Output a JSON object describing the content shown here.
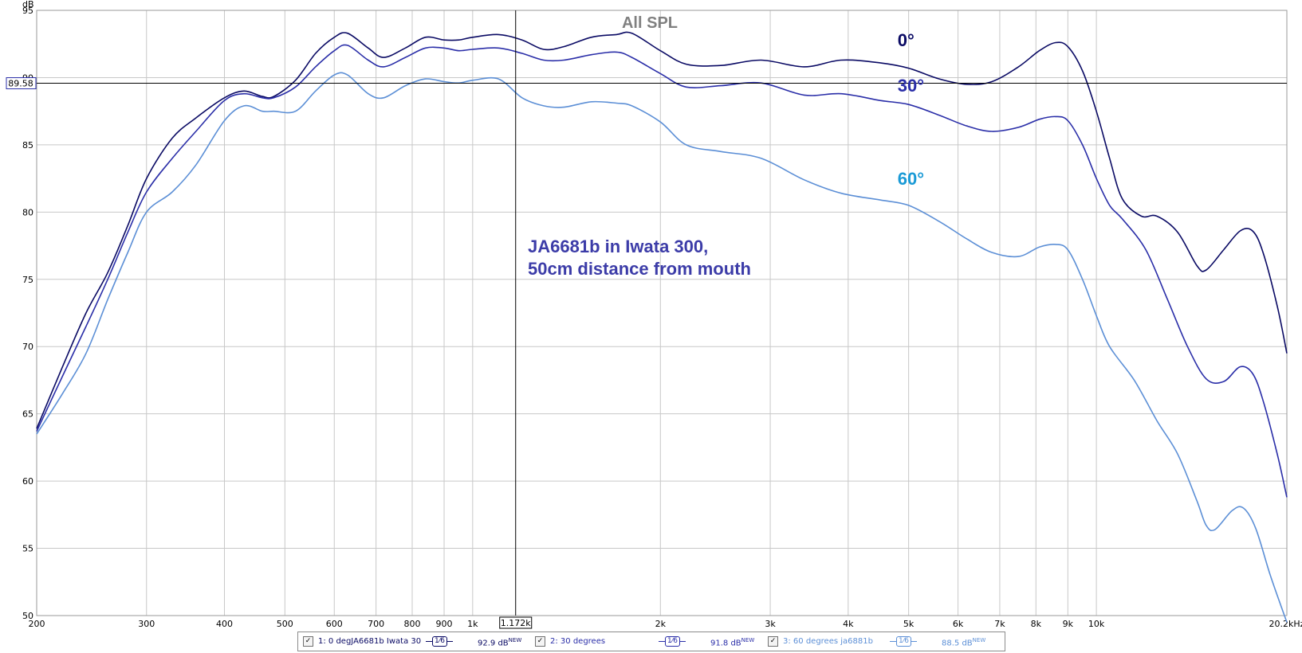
{
  "chart_data": {
    "type": "line",
    "title": "All SPL",
    "ylabel": "dB",
    "xscale": "log",
    "xlim": [
      200,
      20200
    ],
    "ylim": [
      50,
      95
    ],
    "grid": true,
    "x_tick_labels": [
      "200",
      "300",
      "400",
      "500",
      "600",
      "700",
      "800",
      "900",
      "1k",
      "2k",
      "3k",
      "4k",
      "5k",
      "6k",
      "7k",
      "8k",
      "9k",
      "10k",
      "20.2kHz"
    ],
    "y_tick_labels": [
      "95",
      "90",
      "85",
      "80",
      "75",
      "70",
      "65",
      "60",
      "55",
      "50"
    ],
    "cursor": {
      "freq_label": "1.172k",
      "db_label": "89.58",
      "freq": 1172,
      "db": 89.58
    },
    "annotation": [
      "JA6681b in Iwata 300,",
      "50cm distance from mouth"
    ],
    "series": [
      {
        "name": "1: 0 degJA6681b Iwata 30",
        "label": "0°",
        "color": "#0a0a64",
        "level": "92.9 dB",
        "points": [
          [
            200,
            63.9
          ],
          [
            220,
            68.5
          ],
          [
            240,
            72.5
          ],
          [
            260,
            75.5
          ],
          [
            280,
            79
          ],
          [
            300,
            82.5
          ],
          [
            330,
            85.5
          ],
          [
            360,
            87
          ],
          [
            400,
            88.5
          ],
          [
            430,
            89
          ],
          [
            460,
            88.6
          ],
          [
            480,
            88.6
          ],
          [
            520,
            89.8
          ],
          [
            560,
            91.8
          ],
          [
            600,
            93
          ],
          [
            630,
            93.3
          ],
          [
            680,
            92.2
          ],
          [
            720,
            91.5
          ],
          [
            780,
            92.2
          ],
          [
            840,
            93
          ],
          [
            900,
            92.8
          ],
          [
            950,
            92.8
          ],
          [
            1000,
            93
          ],
          [
            1100,
            93.2
          ],
          [
            1200,
            92.8
          ],
          [
            1300,
            92.1
          ],
          [
            1400,
            92.3
          ],
          [
            1550,
            93
          ],
          [
            1700,
            93.2
          ],
          [
            1800,
            93.3
          ],
          [
            2000,
            92
          ],
          [
            2200,
            91
          ],
          [
            2500,
            90.9
          ],
          [
            2900,
            91.3
          ],
          [
            3400,
            90.8
          ],
          [
            3900,
            91.3
          ],
          [
            4500,
            91.1
          ],
          [
            5000,
            90.7
          ],
          [
            5600,
            89.9
          ],
          [
            6200,
            89.5
          ],
          [
            6800,
            89.7
          ],
          [
            7500,
            90.8
          ],
          [
            8100,
            92
          ],
          [
            8600,
            92.6
          ],
          [
            9000,
            92.3
          ],
          [
            9500,
            90.5
          ],
          [
            10000,
            87.5
          ],
          [
            10500,
            84
          ],
          [
            11000,
            81
          ],
          [
            11800,
            79.7
          ],
          [
            12500,
            79.7
          ],
          [
            13500,
            78.5
          ],
          [
            14500,
            76
          ],
          [
            15000,
            75.7
          ],
          [
            16000,
            77.2
          ],
          [
            17000,
            78.6
          ],
          [
            17800,
            78.6
          ],
          [
            18500,
            77
          ],
          [
            19500,
            73
          ],
          [
            20200,
            69.5
          ]
        ]
      },
      {
        "name": "2: 30 degrees",
        "label": "30°",
        "color": "#2a2ea8",
        "level": "91.8 dB",
        "points": [
          [
            200,
            63.7
          ],
          [
            220,
            67.8
          ],
          [
            240,
            71.5
          ],
          [
            260,
            75
          ],
          [
            280,
            78.5
          ],
          [
            300,
            81.5
          ],
          [
            330,
            84
          ],
          [
            360,
            86
          ],
          [
            400,
            88.3
          ],
          [
            430,
            88.8
          ],
          [
            460,
            88.5
          ],
          [
            480,
            88.5
          ],
          [
            520,
            89.3
          ],
          [
            560,
            90.8
          ],
          [
            600,
            92
          ],
          [
            630,
            92.4
          ],
          [
            680,
            91.3
          ],
          [
            720,
            90.8
          ],
          [
            780,
            91.5
          ],
          [
            840,
            92.2
          ],
          [
            900,
            92.2
          ],
          [
            950,
            92
          ],
          [
            1000,
            92.1
          ],
          [
            1100,
            92.2
          ],
          [
            1200,
            91.8
          ],
          [
            1300,
            91.3
          ],
          [
            1400,
            91.3
          ],
          [
            1550,
            91.7
          ],
          [
            1700,
            91.9
          ],
          [
            1800,
            91.5
          ],
          [
            2000,
            90.3
          ],
          [
            2200,
            89.3
          ],
          [
            2500,
            89.4
          ],
          [
            2900,
            89.6
          ],
          [
            3400,
            88.7
          ],
          [
            3900,
            88.8
          ],
          [
            4500,
            88.3
          ],
          [
            5000,
            88
          ],
          [
            5600,
            87.2
          ],
          [
            6200,
            86.4
          ],
          [
            6800,
            86
          ],
          [
            7500,
            86.3
          ],
          [
            8100,
            86.9
          ],
          [
            8600,
            87.1
          ],
          [
            9000,
            86.8
          ],
          [
            9500,
            85
          ],
          [
            10000,
            82.5
          ],
          [
            10500,
            80.5
          ],
          [
            11000,
            79.5
          ],
          [
            12000,
            77.2
          ],
          [
            13000,
            73.5
          ],
          [
            14000,
            70
          ],
          [
            15000,
            67.6
          ],
          [
            16000,
            67.4
          ],
          [
            17000,
            68.5
          ],
          [
            17800,
            68
          ],
          [
            18500,
            66
          ],
          [
            19500,
            62
          ],
          [
            20200,
            58.8
          ]
        ]
      },
      {
        "name": "3: 60 degrees ja6881b",
        "label": "60°",
        "color": "#5c8fd6",
        "label_color": "#1a9ad6",
        "level": "88.5 dB",
        "points": [
          [
            200,
            63.5
          ],
          [
            220,
            66.5
          ],
          [
            240,
            69.5
          ],
          [
            260,
            73.5
          ],
          [
            280,
            77
          ],
          [
            300,
            80
          ],
          [
            330,
            81.5
          ],
          [
            360,
            83.5
          ],
          [
            400,
            86.8
          ],
          [
            430,
            87.9
          ],
          [
            460,
            87.5
          ],
          [
            480,
            87.5
          ],
          [
            520,
            87.5
          ],
          [
            560,
            89
          ],
          [
            600,
            90.2
          ],
          [
            630,
            90.2
          ],
          [
            680,
            88.8
          ],
          [
            720,
            88.5
          ],
          [
            780,
            89.4
          ],
          [
            840,
            89.9
          ],
          [
            900,
            89.7
          ],
          [
            950,
            89.6
          ],
          [
            1000,
            89.8
          ],
          [
            1100,
            89.9
          ],
          [
            1200,
            88.5
          ],
          [
            1300,
            87.9
          ],
          [
            1400,
            87.8
          ],
          [
            1550,
            88.2
          ],
          [
            1700,
            88.1
          ],
          [
            1800,
            87.9
          ],
          [
            2000,
            86.7
          ],
          [
            2200,
            85
          ],
          [
            2500,
            84.5
          ],
          [
            2900,
            84
          ],
          [
            3400,
            82.4
          ],
          [
            3900,
            81.4
          ],
          [
            4500,
            80.9
          ],
          [
            5000,
            80.5
          ],
          [
            5600,
            79.3
          ],
          [
            6200,
            78
          ],
          [
            6800,
            77
          ],
          [
            7500,
            76.7
          ],
          [
            8100,
            77.4
          ],
          [
            8600,
            77.6
          ],
          [
            9000,
            77.2
          ],
          [
            9500,
            75
          ],
          [
            10000,
            72.3
          ],
          [
            10500,
            70
          ],
          [
            11500,
            67.5
          ],
          [
            12500,
            64.5
          ],
          [
            13500,
            62
          ],
          [
            14500,
            58.5
          ],
          [
            15000,
            56.7
          ],
          [
            15500,
            56.4
          ],
          [
            16500,
            57.8
          ],
          [
            17200,
            58
          ],
          [
            18000,
            56.5
          ],
          [
            19000,
            53
          ],
          [
            20200,
            49.5
          ]
        ]
      }
    ]
  }
}
